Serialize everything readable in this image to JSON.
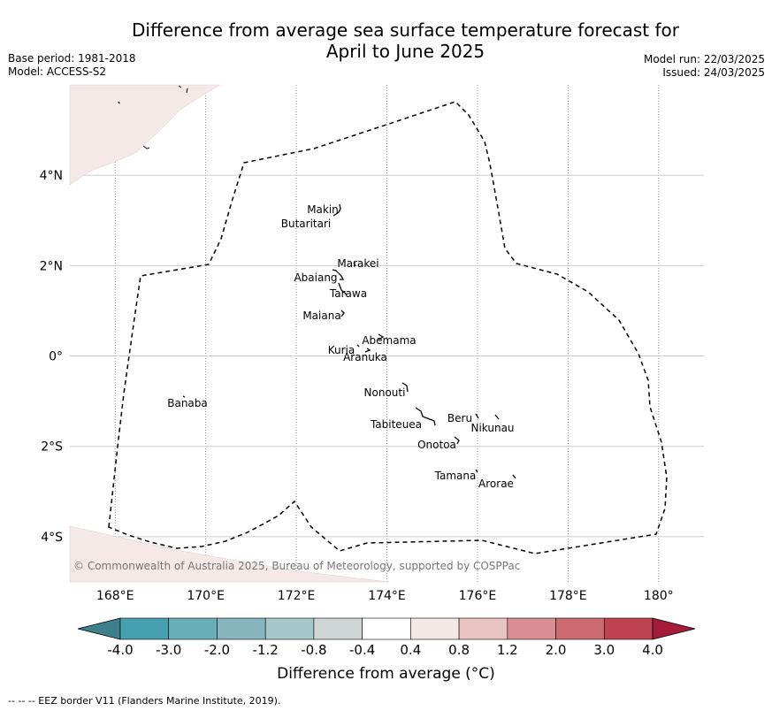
{
  "title_line1": "Difference from average sea surface temperature forecast for",
  "title_line2": "April to June 2025",
  "base_period": "Base period: 1981-2018",
  "model": "Model: ACCESS-S2",
  "model_run": "Model run: 22/03/2025",
  "issued": "Issued: 24/03/2025",
  "copyright": "© Commonwealth of Australia 2025, Bureau of Meteorology, supported by COSPPac",
  "lon_labels": [
    "168°E",
    "170°E",
    "172°E",
    "174°E",
    "176°E",
    "178°E",
    "180°"
  ],
  "lat_labels": [
    "4°N",
    "2°N",
    "0°",
    "2°S",
    "4°S"
  ],
  "islands": [
    {
      "name": "Makin",
      "lon": 172.95,
      "lat": 3.15
    },
    {
      "name": "Butaritari",
      "lon": 172.75,
      "lat": 3.05
    },
    {
      "name": "Marakei",
      "lon": 173.35,
      "lat": 2.0
    },
    {
      "name": "Abaiang",
      "lon": 172.9,
      "lat": 1.8
    },
    {
      "name": "Tarawa",
      "lon": 173.0,
      "lat": 1.4
    },
    {
      "name": "Maiana",
      "lon": 173.0,
      "lat": 0.95
    },
    {
      "name": "Abemama",
      "lon": 173.85,
      "lat": 0.4
    },
    {
      "name": "Kuria",
      "lon": 173.4,
      "lat": 0.25
    },
    {
      "name": "Aranuka",
      "lon": 173.6,
      "lat": 0.18
    },
    {
      "name": "Banaba",
      "lon": 169.55,
      "lat": -0.87
    },
    {
      "name": "Nonouti",
      "lon": 174.4,
      "lat": -0.65
    },
    {
      "name": "Tabiteuea",
      "lon": 174.8,
      "lat": -1.2
    },
    {
      "name": "Beru",
      "lon": 176.0,
      "lat": -1.33
    },
    {
      "name": "Nikunau",
      "lon": 176.45,
      "lat": -1.35
    },
    {
      "name": "Onotoa",
      "lon": 175.55,
      "lat": -1.8
    },
    {
      "name": "Tamana",
      "lon": 175.98,
      "lat": -2.5
    },
    {
      "name": "Arorae",
      "lon": 176.8,
      "lat": -2.65
    }
  ],
  "colorbar": {
    "labels": [
      "-4.0",
      "-3.0",
      "-2.0",
      "-1.2",
      "-0.8",
      "-0.4",
      "0.4",
      "0.8",
      "1.2",
      "2.0",
      "3.0",
      "4.0"
    ],
    "colors": [
      "#3d7f8b",
      "#46a0b0",
      "#69aeb9",
      "#87b6be",
      "#a8c7ca",
      "#d0d6d5",
      "#ffffff",
      "#f3e8e5",
      "#e8c4c0",
      "#d98e93",
      "#cc6a72",
      "#c04352",
      "#a51c3b"
    ],
    "label": "Difference from average (°C)"
  },
  "footnote": "--  --  -- EEZ border V11 (Flanders Marine Institute, 2019).",
  "land_color": "#f4e9e7"
}
